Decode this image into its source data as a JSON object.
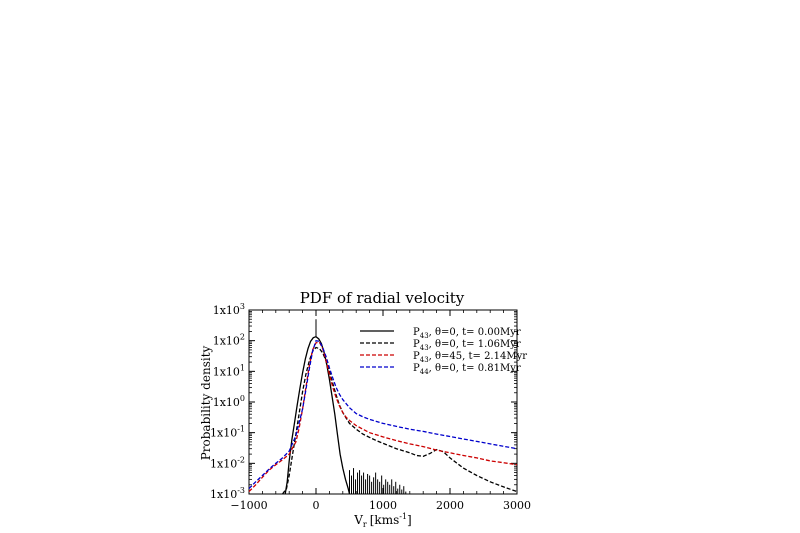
{
  "chart_data": {
    "type": "line",
    "title": "PDF of radial velocity",
    "xlabel": "V",
    "xlabel_sub": "r",
    "xlabel_unit": "[kms",
    "xlabel_unit_sup": "-1",
    "xlabel_unit_close": "]",
    "ylabel": "Probability density",
    "xlim": [
      -1000,
      3000
    ],
    "ylim": [
      0.001,
      1000
    ],
    "yscale": "log",
    "x_ticks": [
      -1000,
      0,
      1000,
      2000,
      3000
    ],
    "x_tick_labels": [
      "−1000",
      "0",
      "1000",
      "2000",
      "3000"
    ],
    "y_ticks": [
      0.001,
      0.01,
      0.1,
      1,
      10,
      100,
      1000
    ],
    "y_tick_base": "1x10",
    "y_tick_exponents": [
      "-3",
      "-2",
      "-1",
      "0",
      "1",
      "2",
      "3"
    ],
    "grid": false,
    "legend_position": "top-right",
    "series": [
      {
        "name": "P43, θ=0, t= 0.00Myr",
        "legend_main": "P",
        "legend_sub": "43",
        "legend_rest": ", θ=0, t= 0.00Myr",
        "color": "#000000",
        "dash": "solid",
        "x": [
          -460,
          -430,
          -400,
          -360,
          -320,
          -280,
          -240,
          -200,
          -160,
          -120,
          -80,
          -40,
          0,
          40,
          80,
          120,
          160,
          200,
          240,
          280,
          320,
          360,
          400,
          440,
          480,
          500
        ],
        "y": [
          0.001,
          0.0025,
          0.012,
          0.06,
          0.22,
          0.8,
          2.8,
          9,
          25,
          55,
          95,
          125,
          135,
          115,
          80,
          42,
          17,
          5.5,
          1.5,
          0.4,
          0.09,
          0.02,
          0.007,
          0.003,
          0.0015,
          0.001
        ],
        "spike": {
          "x": 0,
          "y": 500
        },
        "noise_tail": {
          "x": [
            500,
            530,
            560,
            590,
            620,
            650,
            680,
            710,
            740,
            770,
            800,
            830,
            860,
            890,
            920,
            950,
            980,
            1010,
            1040,
            1070,
            1100,
            1130,
            1160,
            1190,
            1220,
            1250,
            1280,
            1310,
            1340
          ],
          "y": [
            0.006,
            0.004,
            0.007,
            0.003,
            0.005,
            0.006,
            0.004,
            0.005,
            0.003,
            0.0045,
            0.004,
            0.0025,
            0.0035,
            0.005,
            0.003,
            0.0025,
            0.004,
            0.002,
            0.003,
            0.0025,
            0.002,
            0.003,
            0.0018,
            0.0025,
            0.0015,
            0.002,
            0.0014,
            0.0018,
            0.0012
          ]
        }
      },
      {
        "name": "P43, θ=0, t= 1.06Myr",
        "legend_main": "P",
        "legend_sub": "43",
        "legend_rest": ", θ=0, t= 1.06Myr",
        "color": "#000000",
        "dash": "dashed",
        "x": [
          -500,
          -440,
          -400,
          -350,
          -300,
          -250,
          -200,
          -150,
          -100,
          -50,
          0,
          50,
          100,
          150,
          200,
          250,
          300,
          350,
          400,
          450,
          500,
          600,
          700,
          800,
          900,
          1000,
          1200,
          1400,
          1500,
          1600,
          1700,
          1800,
          1900,
          2000,
          2200,
          2400,
          2600,
          2800,
          3000
        ],
        "y": [
          0.001,
          0.0015,
          0.004,
          0.02,
          0.09,
          0.45,
          2.2,
          8,
          22,
          45,
          60,
          55,
          40,
          22,
          10,
          4,
          1.7,
          0.8,
          0.45,
          0.3,
          0.2,
          0.13,
          0.09,
          0.07,
          0.055,
          0.045,
          0.03,
          0.022,
          0.018,
          0.017,
          0.021,
          0.028,
          0.024,
          0.015,
          0.007,
          0.004,
          0.0025,
          0.0017,
          0.0012
        ]
      },
      {
        "name": "P43, θ=45, t= 2.14Myr",
        "legend_main": "P",
        "legend_sub": "43",
        "legend_rest": ", θ=45, t= 2.14Myr",
        "color": "#cc0000",
        "dash": "dashed",
        "x": [
          -1000,
          -900,
          -800,
          -700,
          -600,
          -500,
          -400,
          -300,
          -250,
          -200,
          -150,
          -100,
          -50,
          0,
          50,
          100,
          150,
          200,
          250,
          300,
          350,
          400,
          450,
          500,
          600,
          700,
          800,
          900,
          1000,
          1200,
          1400,
          1600,
          1800,
          2000,
          2200,
          2400,
          2600,
          2800,
          3000
        ],
        "y": [
          0.0012,
          0.002,
          0.0035,
          0.006,
          0.009,
          0.013,
          0.02,
          0.05,
          0.15,
          0.6,
          3,
          15,
          50,
          85,
          90,
          55,
          22,
          8,
          3,
          1.4,
          0.75,
          0.45,
          0.32,
          0.25,
          0.17,
          0.13,
          0.1,
          0.085,
          0.073,
          0.055,
          0.043,
          0.035,
          0.027,
          0.022,
          0.018,
          0.015,
          0.012,
          0.0105,
          0.009
        ]
      },
      {
        "name": "P44, θ=0, t= 0.81Myr",
        "legend_main": "P",
        "legend_sub": "44",
        "legend_rest": ", θ=0, t= 0.81Myr",
        "color": "#0000cc",
        "dash": "dashed",
        "x": [
          -1000,
          -900,
          -800,
          -700,
          -600,
          -500,
          -400,
          -300,
          -200,
          -150,
          -100,
          -50,
          0,
          50,
          100,
          150,
          200,
          250,
          300,
          350,
          400,
          500,
          600,
          700,
          800,
          1000,
          1200,
          1400,
          1600,
          1800,
          2000,
          2200,
          2400,
          2600,
          2800,
          3000
        ],
        "y": [
          0.0015,
          0.0025,
          0.004,
          0.0065,
          0.01,
          0.015,
          0.025,
          0.08,
          0.6,
          2.5,
          12,
          45,
          100,
          95,
          60,
          30,
          13,
          6,
          3,
          1.8,
          1.2,
          0.65,
          0.42,
          0.33,
          0.27,
          0.2,
          0.16,
          0.13,
          0.11,
          0.09,
          0.075,
          0.062,
          0.052,
          0.043,
          0.036,
          0.03
        ]
      }
    ]
  }
}
